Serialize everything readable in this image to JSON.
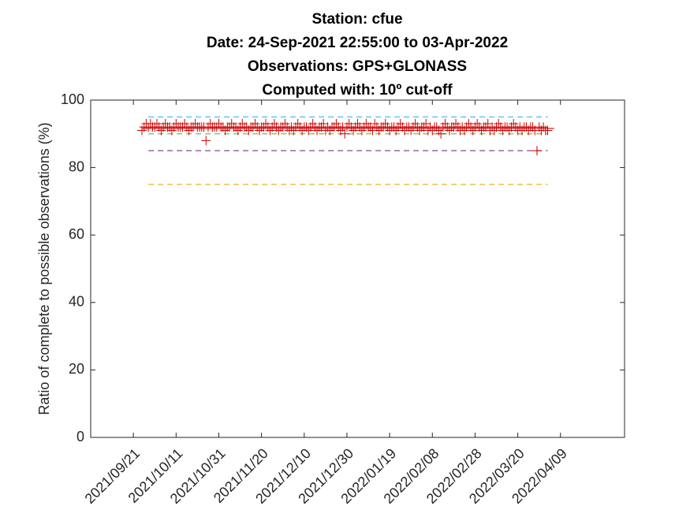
{
  "chart_data": {
    "type": "scatter",
    "title": [
      "Station: cfue",
      "Date: 24-Sep-2021 22:55:00 to 03-Apr-2022",
      "Observations: GPS+GLONASS",
      "Computed with: 10º cut-off"
    ],
    "ylabel": "Ratio of complete to possible observations (%)",
    "xlim": [
      "2021/09/01",
      "2022/05/09"
    ],
    "xticks": [
      "2021/09/21",
      "2021/10/11",
      "2021/10/31",
      "2021/11/20",
      "2021/12/10",
      "2021/12/30",
      "2022/01/19",
      "2022/02/08",
      "2022/02/28",
      "2022/03/20",
      "2022/04/09"
    ],
    "ylim": [
      0,
      100
    ],
    "yticks": [
      0,
      20,
      40,
      60,
      80,
      100
    ],
    "series": [
      {
        "color": "#cc0000",
        "marker": "+",
        "x": [
          "2021/09/25",
          "2021/09/26",
          "2021/09/27",
          "2021/09/28",
          "2021/09/29",
          "2021/09/30",
          "2021/10/01",
          "2021/10/02",
          "2021/10/03",
          "2021/10/04",
          "2021/10/05",
          "2021/10/06",
          "2021/10/07",
          "2021/10/08",
          "2021/10/09",
          "2021/10/10",
          "2021/10/11",
          "2021/10/12",
          "2021/10/13",
          "2021/10/14",
          "2021/10/15",
          "2021/10/16",
          "2021/10/17",
          "2021/10/18",
          "2021/10/19",
          "2021/10/20",
          "2021/10/21",
          "2021/10/22",
          "2021/10/23",
          "2021/10/24",
          "2021/10/25",
          "2021/10/26",
          "2021/10/27",
          "2021/10/28",
          "2021/10/29",
          "2021/10/30",
          "2021/10/31",
          "2021/11/01",
          "2021/11/02",
          "2021/11/03",
          "2021/11/04",
          "2021/11/05",
          "2021/11/06",
          "2021/11/07",
          "2021/11/08",
          "2021/11/09",
          "2021/11/10",
          "2021/11/11",
          "2021/11/12",
          "2021/11/13",
          "2021/11/14",
          "2021/11/15",
          "2021/11/16",
          "2021/11/17",
          "2021/11/18",
          "2021/11/19",
          "2021/11/20",
          "2021/11/21",
          "2021/11/22",
          "2021/11/23",
          "2021/11/24",
          "2021/11/25",
          "2021/11/26",
          "2021/11/27",
          "2021/11/28",
          "2021/11/29",
          "2021/11/30",
          "2021/12/01",
          "2021/12/02",
          "2021/12/03",
          "2021/12/04",
          "2021/12/05",
          "2021/12/06",
          "2021/12/07",
          "2021/12/08",
          "2021/12/09",
          "2021/12/10",
          "2021/12/11",
          "2021/12/12",
          "2021/12/13",
          "2021/12/14",
          "2021/12/15",
          "2021/12/16",
          "2021/12/17",
          "2021/12/18",
          "2021/12/19",
          "2021/12/20",
          "2021/12/21",
          "2021/12/22",
          "2021/12/23",
          "2021/12/24",
          "2021/12/25",
          "2021/12/26",
          "2021/12/27",
          "2021/12/28",
          "2021/12/29",
          "2021/12/30",
          "2021/12/31",
          "2022/01/01",
          "2022/01/02",
          "2022/01/03",
          "2022/01/04",
          "2022/01/05",
          "2022/01/06",
          "2022/01/07",
          "2022/01/08",
          "2022/01/09",
          "2022/01/10",
          "2022/01/11",
          "2022/01/12",
          "2022/01/13",
          "2022/01/14",
          "2022/01/15",
          "2022/01/16",
          "2022/01/17",
          "2022/01/18",
          "2022/01/19",
          "2022/01/20",
          "2022/01/21",
          "2022/01/22",
          "2022/01/23",
          "2022/01/24",
          "2022/01/25",
          "2022/01/26",
          "2022/01/27",
          "2022/01/28",
          "2022/01/29",
          "2022/01/30",
          "2022/01/31",
          "2022/02/01",
          "2022/02/02",
          "2022/02/03",
          "2022/02/04",
          "2022/02/05",
          "2022/02/06",
          "2022/02/07",
          "2022/02/08",
          "2022/02/09",
          "2022/02/10",
          "2022/02/11",
          "2022/02/12",
          "2022/02/13",
          "2022/02/14",
          "2022/02/15",
          "2022/02/16",
          "2022/02/17",
          "2022/02/18",
          "2022/02/19",
          "2022/02/20",
          "2022/02/21",
          "2022/02/22",
          "2022/02/23",
          "2022/02/24",
          "2022/02/25",
          "2022/02/26",
          "2022/02/27",
          "2022/02/28",
          "2022/03/01",
          "2022/03/02",
          "2022/03/03",
          "2022/03/04",
          "2022/03/05",
          "2022/03/06",
          "2022/03/07",
          "2022/03/08",
          "2022/03/09",
          "2022/03/10",
          "2022/03/11",
          "2022/03/12",
          "2022/03/13",
          "2022/03/14",
          "2022/03/15",
          "2022/03/16",
          "2022/03/17",
          "2022/03/18",
          "2022/03/19",
          "2022/03/20",
          "2022/03/21",
          "2022/03/22",
          "2022/03/23",
          "2022/03/24",
          "2022/03/25",
          "2022/03/26",
          "2022/03/27",
          "2022/03/28",
          "2022/03/29",
          "2022/03/30",
          "2022/03/31",
          "2022/04/01",
          "2022/04/02",
          "2022/04/03"
        ],
        "values": [
          91,
          92,
          93,
          92,
          93,
          92,
          92,
          93,
          92,
          91,
          92,
          93,
          92,
          92,
          91,
          92,
          93,
          92,
          92,
          92,
          93,
          92,
          91,
          92,
          92,
          93,
          92,
          92,
          92,
          92,
          88,
          92,
          93,
          92,
          92,
          92,
          93,
          92,
          92,
          91,
          92,
          92,
          93,
          92,
          92,
          91,
          92,
          93,
          92,
          92,
          91,
          92,
          92,
          93,
          92,
          91,
          92,
          92,
          93,
          92,
          91,
          92,
          93,
          92,
          91,
          92,
          92,
          93,
          92,
          91,
          92,
          91,
          92,
          93,
          92,
          91,
          92,
          92,
          91,
          92,
          93,
          92,
          91,
          92,
          92,
          93,
          91,
          92,
          91,
          92,
          92,
          93,
          92,
          91,
          92,
          90,
          92,
          93,
          92,
          91,
          92,
          93,
          92,
          91,
          92,
          93,
          92,
          92,
          91,
          93,
          92,
          91,
          92,
          92,
          93,
          92,
          91,
          92,
          92,
          91,
          92,
          93,
          92,
          91,
          92,
          92,
          91,
          92,
          93,
          92,
          91,
          92,
          92,
          93,
          91,
          92,
          91,
          92,
          92,
          91,
          90,
          92,
          93,
          92,
          91,
          92,
          92,
          93,
          92,
          91,
          92,
          91,
          92,
          93,
          92,
          91,
          92,
          93,
          92,
          91,
          92,
          92,
          93,
          91,
          92,
          91,
          92,
          93,
          92,
          91,
          92,
          92,
          91,
          92,
          93,
          92,
          91,
          92,
          91,
          92,
          92,
          91,
          92,
          92,
          91,
          85,
          92,
          91,
          92,
          91,
          91
        ]
      }
    ],
    "reference_lines": [
      {
        "value": 91.6,
        "color": "#cc0000",
        "style": "solid",
        "x": [
          "2021/09/25",
          "2022/04/06"
        ]
      },
      {
        "value": 95,
        "color": "#4dbeee",
        "style": "dashed",
        "x": [
          "2021/09/28",
          "2022/04/03"
        ]
      },
      {
        "value": 90,
        "color": "#77ac30",
        "style": "dashed",
        "x": [
          "2021/09/28",
          "2022/04/03"
        ]
      },
      {
        "value": 85,
        "color": "#7e2f8e",
        "style": "dashed",
        "x": [
          "2021/09/28",
          "2022/04/03"
        ]
      },
      {
        "value": 75,
        "color": "#edb120",
        "style": "dashed",
        "x": [
          "2021/09/28",
          "2022/04/03"
        ]
      }
    ]
  }
}
